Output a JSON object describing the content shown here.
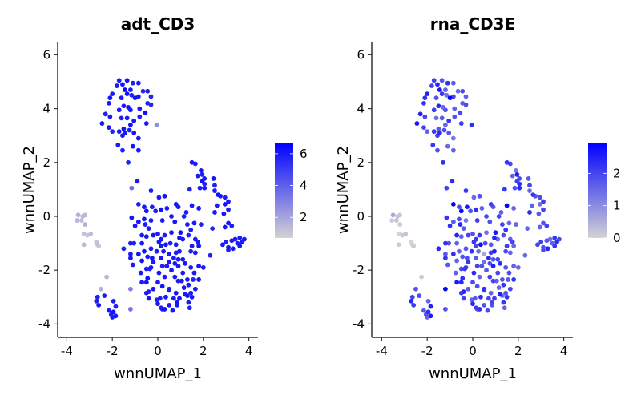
{
  "chart_data": [
    {
      "type": "scatter",
      "title": "adt_CD3",
      "xlabel": "wnnUMAP_1",
      "ylabel": "wnnUMAP_2",
      "xlim": [
        -4.3,
        4.5
      ],
      "ylim": [
        -4.5,
        6.5
      ],
      "xticks": [
        "-4",
        "-2",
        "0",
        "2",
        "4"
      ],
      "yticks": [
        "-4",
        "-2",
        "0",
        "2",
        "4",
        "6"
      ],
      "value_field": "adt",
      "color_range": [
        0.7,
        6.7
      ],
      "color_low": "#d3d3d3",
      "color_high": "#0000ff",
      "legend_ticks": [
        "2",
        "4",
        "6"
      ],
      "legend_position": "right",
      "grid": false
    },
    {
      "type": "scatter",
      "title": "rna_CD3E",
      "xlabel": "wnnUMAP_1",
      "ylabel": "wnnUMAP_2",
      "xlim": [
        -4.3,
        4.5
      ],
      "ylim": [
        -4.5,
        6.5
      ],
      "xticks": [
        "-4",
        "-2",
        "0",
        "2",
        "4"
      ],
      "yticks": [
        "-4",
        "-2",
        "0",
        "2",
        "4",
        "6"
      ],
      "value_field": "rna",
      "color_range": [
        0,
        2.95
      ],
      "color_low": "#d3d3d3",
      "color_high": "#0000ff",
      "legend_ticks": [
        "0",
        "1",
        "2"
      ],
      "legend_position": "right",
      "grid": false
    }
  ],
  "points_fields": [
    "wnnUMAP_1",
    "wnnUMAP_2",
    "adt",
    "rna"
  ],
  "points": [
    [
      -1.7,
      5.05,
      6,
      2.1
    ],
    [
      -1.35,
      5.05,
      6.2,
      1.8
    ],
    [
      -1.1,
      4.95,
      5.8,
      2.3
    ],
    [
      -0.85,
      4.95,
      6,
      1.7
    ],
    [
      -1.8,
      4.85,
      5.9,
      2.0
    ],
    [
      -1.55,
      4.9,
      6.1,
      2.4
    ],
    [
      -1.2,
      4.7,
      6,
      1.6
    ],
    [
      -1.45,
      4.7,
      6.3,
      2.6
    ],
    [
      -0.65,
      4.65,
      5.7,
      1.5
    ],
    [
      -0.45,
      4.65,
      5.9,
      1.9
    ],
    [
      -2.0,
      4.55,
      6,
      2.5
    ],
    [
      -1.35,
      4.55,
      6.2,
      2.2
    ],
    [
      -1.15,
      4.5,
      5.8,
      1.4
    ],
    [
      -0.85,
      4.45,
      6,
      2.0
    ],
    [
      -0.3,
      4.45,
      5.8,
      1.6
    ],
    [
      -2.1,
      4.4,
      6.1,
      2.3
    ],
    [
      -1.6,
      4.4,
      6,
      1.8
    ],
    [
      -1.0,
      4.4,
      6.2,
      2.9
    ],
    [
      -2.15,
      4.2,
      5.9,
      2.2
    ],
    [
      -0.45,
      4.2,
      5.8,
      1.7
    ],
    [
      -0.3,
      4.15,
      5.7,
      1.9
    ],
    [
      -1.5,
      4.1,
      6,
      2.4
    ],
    [
      -1.3,
      4.05,
      6.1,
      1.5
    ],
    [
      -1.7,
      3.95,
      6,
      2.1
    ],
    [
      -1.2,
      3.95,
      5.9,
      1.8
    ],
    [
      -0.8,
      4.0,
      6,
      1.6
    ],
    [
      -2.3,
      3.8,
      5.8,
      2.5
    ],
    [
      -2.1,
      3.7,
      6,
      2.0
    ],
    [
      -0.55,
      3.85,
      6.2,
      1.9
    ],
    [
      -1.6,
      3.65,
      5.9,
      1.4
    ],
    [
      -1.35,
      3.65,
      6,
      1.7
    ],
    [
      -1.05,
      3.55,
      6.1,
      2.2
    ],
    [
      -0.8,
      3.7,
      5.8,
      1.8
    ],
    [
      -2.45,
      3.45,
      6,
      2.6
    ],
    [
      -1.2,
      3.4,
      6.2,
      1.5
    ],
    [
      -0.5,
      3.45,
      5.9,
      2.1
    ],
    [
      -0.05,
      3.4,
      2.6,
      2.3
    ],
    [
      -2.15,
      3.3,
      6,
      2.0
    ],
    [
      -1.5,
      3.25,
      6.1,
      1.7
    ],
    [
      -1.25,
      3.2,
      5.9,
      1.9
    ],
    [
      -1.7,
      3.15,
      6,
      2.2
    ],
    [
      -2.0,
      3.15,
      5.8,
      1.6
    ],
    [
      -1.45,
      3.1,
      6,
      2.4
    ],
    [
      -1.05,
      3.1,
      6.1,
      1.8
    ],
    [
      -1.55,
      3.0,
      6,
      2.0
    ],
    [
      -0.85,
      2.9,
      5.9,
      1.3
    ],
    [
      -1.75,
      2.65,
      6,
      2.2
    ],
    [
      -1.1,
      2.6,
      6.1,
      1.5
    ],
    [
      -1.55,
      2.45,
      5.8,
      1.8
    ],
    [
      -0.85,
      2.45,
      6,
      1.6
    ],
    [
      -1.3,
      2.0,
      5.7,
      2.3
    ],
    [
      -3.5,
      0.05,
      1.6,
      0.6
    ],
    [
      -3.3,
      0.0,
      1.4,
      0.2
    ],
    [
      -3.2,
      0.05,
      1.5,
      0.1
    ],
    [
      -3.55,
      -0.15,
      1.5,
      0.1
    ],
    [
      -3.35,
      -0.15,
      1.3,
      0.2
    ],
    [
      -3.2,
      -0.3,
      1.6,
      0.1
    ],
    [
      -3.25,
      -0.65,
      1.2,
      0
    ],
    [
      -3.1,
      -0.7,
      1.1,
      0.1
    ],
    [
      -2.95,
      -0.65,
      1.3,
      0.2
    ],
    [
      -2.7,
      -0.95,
      1.1,
      0
    ],
    [
      -2.6,
      -1.1,
      1.0,
      0.1
    ],
    [
      -2.65,
      -1.05,
      1.2,
      0
    ],
    [
      -3.25,
      -1.05,
      1.4,
      0.1
    ],
    [
      -2.25,
      -2.25,
      1.5,
      0.1
    ],
    [
      -2.5,
      -2.7,
      1.6,
      1.8
    ],
    [
      -2.65,
      -3.0,
      5.8,
      2.0
    ],
    [
      -2.35,
      -2.95,
      6,
      1.9
    ],
    [
      -2.7,
      -3.15,
      5.9,
      2.4
    ],
    [
      -1.95,
      -3.15,
      6,
      1.6
    ],
    [
      -2.6,
      -3.3,
      6.1,
      2.1
    ],
    [
      -1.85,
      -3.35,
      5.8,
      2.5
    ],
    [
      -2.15,
      -3.5,
      6,
      1.7
    ],
    [
      -1.95,
      -3.55,
      6.2,
      2.3
    ],
    [
      -2.05,
      -3.65,
      5.9,
      1.8
    ],
    [
      -1.85,
      -3.7,
      6,
      2.6
    ],
    [
      -2.0,
      -3.75,
      6,
      1.5
    ],
    [
      -1.2,
      -2.7,
      3.0,
      2.9
    ],
    [
      -1.2,
      -3.45,
      3.4,
      1.8
    ],
    [
      1.5,
      2.0,
      5.9,
      2.2
    ],
    [
      1.65,
      1.95,
      6,
      2.0
    ],
    [
      1.9,
      1.7,
      6.1,
      1.3
    ],
    [
      1.95,
      1.55,
      5.8,
      2.5
    ],
    [
      1.75,
      1.5,
      6,
      1.6
    ],
    [
      2.05,
      1.4,
      6,
      1.9
    ],
    [
      1.95,
      1.3,
      6.2,
      2.1
    ],
    [
      2.05,
      1.2,
      5.8,
      2.3
    ],
    [
      1.85,
      1.05,
      6,
      1.8
    ],
    [
      2.05,
      1.05,
      6,
      2.4
    ],
    [
      2.45,
      1.4,
      6.1,
      1.7
    ],
    [
      2.5,
      1.15,
      5.9,
      2.0
    ],
    [
      2.5,
      0.95,
      6,
      1.5
    ],
    [
      2.65,
      0.8,
      6.2,
      2.2
    ],
    [
      2.75,
      0.75,
      6,
      1.8
    ],
    [
      2.95,
      0.7,
      5.9,
      1.9
    ],
    [
      3.1,
      0.55,
      6,
      2.1
    ],
    [
      2.6,
      0.4,
      6,
      1.6
    ],
    [
      2.95,
      0.45,
      6.1,
      1.4
    ],
    [
      3.1,
      0.25,
      5.8,
      2.0
    ],
    [
      2.9,
      0.1,
      6,
      1.7
    ],
    [
      2.5,
      0.15,
      5.9,
      2.3
    ],
    [
      1.4,
      1.0,
      5.8,
      2.2
    ],
    [
      3.1,
      -0.25,
      6,
      1.8
    ],
    [
      3.25,
      -0.35,
      5.9,
      2.0
    ],
    [
      2.95,
      -0.4,
      6.1,
      1.6
    ],
    [
      2.4,
      -0.45,
      5.7,
      1.5
    ],
    [
      3.6,
      -0.8,
      6,
      2.2
    ],
    [
      3.8,
      -0.85,
      6.1,
      1.9
    ],
    [
      3.7,
      -0.95,
      5.9,
      2.3
    ],
    [
      3.4,
      -0.85,
      6,
      1.4
    ],
    [
      3.25,
      -0.9,
      6,
      1.7
    ],
    [
      3.0,
      -0.95,
      5.8,
      2.1
    ],
    [
      2.85,
      -1.05,
      6,
      2.0
    ],
    [
      3.1,
      -1.15,
      6.1,
      1.8
    ],
    [
      3.5,
      -1.0,
      5.9,
      1.6
    ],
    [
      3.3,
      -1.2,
      6,
      2.4
    ],
    [
      3.6,
      -1.1,
      6,
      2.2
    ],
    [
      3.1,
      -1.25,
      5.8,
      1.9
    ],
    [
      -0.9,
      1.3,
      6,
      2.3
    ],
    [
      -1.15,
      1.05,
      3.6,
      2.0
    ],
    [
      -0.3,
      0.95,
      6,
      2.2
    ],
    [
      0.05,
      0.7,
      5.9,
      1.5
    ],
    [
      0.3,
      0.75,
      6.1,
      1.8
    ],
    [
      -0.85,
      0.45,
      6,
      2.9
    ],
    [
      -0.6,
      0.35,
      6,
      1.9
    ],
    [
      -0.25,
      0.35,
      5.8,
      2.6
    ],
    [
      0.4,
      0.3,
      6,
      1.6
    ],
    [
      0.8,
      0.45,
      6.1,
      2.1
    ],
    [
      0.9,
      0.35,
      5.9,
      1.7
    ],
    [
      1.5,
      0.4,
      6,
      2.9
    ],
    [
      1.8,
      0.3,
      6,
      1.5
    ],
    [
      0.15,
      0.25,
      6.2,
      2.3
    ],
    [
      -0.1,
      0.2,
      5.9,
      1.8
    ],
    [
      -0.5,
      0.2,
      6,
      2.8
    ],
    [
      0.6,
      0.0,
      6,
      1.9
    ],
    [
      1.15,
      -0.0,
      5.8,
      2.0
    ],
    [
      1.25,
      0.15,
      6,
      1.6
    ],
    [
      -1.15,
      -0.05,
      6.1,
      2.2
    ],
    [
      -0.85,
      -0.2,
      6,
      1.7
    ],
    [
      -0.55,
      -0.3,
      5.9,
      2.4
    ],
    [
      -0.3,
      -0.15,
      6,
      1.3
    ],
    [
      0.2,
      -0.15,
      6,
      2.1
    ],
    [
      0.75,
      -0.2,
      6.1,
      1.8
    ],
    [
      1.3,
      -0.3,
      5.9,
      2.0
    ],
    [
      1.6,
      -0.25,
      6,
      1.6
    ],
    [
      1.9,
      -0.3,
      5.8,
      1.5
    ],
    [
      -1.0,
      -0.35,
      6,
      2.3
    ],
    [
      -0.6,
      -0.1,
      6.1,
      1.9
    ],
    [
      -0.4,
      -0.45,
      6,
      1.7
    ],
    [
      1.45,
      -0.5,
      5.9,
      2.2
    ],
    [
      -0.7,
      -0.7,
      6,
      2.5
    ],
    [
      -0.5,
      -0.75,
      6,
      1.6
    ],
    [
      -0.2,
      -0.7,
      6.1,
      2.0
    ],
    [
      0.0,
      -0.65,
      5.9,
      1.8
    ],
    [
      0.3,
      -0.7,
      6,
      2.2
    ],
    [
      0.6,
      -0.6,
      6,
      1.4
    ],
    [
      1.0,
      -0.6,
      6.2,
      2.6
    ],
    [
      1.35,
      -0.7,
      5.8,
      1.9
    ],
    [
      1.65,
      -0.85,
      6,
      1.7
    ],
    [
      0.15,
      -0.85,
      6,
      2.1
    ],
    [
      0.95,
      -0.8,
      6.1,
      2.4
    ],
    [
      1.1,
      -0.85,
      5.9,
      1.5
    ],
    [
      1.75,
      -0.95,
      6,
      2.0
    ],
    [
      -1.2,
      -1.0,
      6,
      2.3
    ],
    [
      -1.05,
      -1.0,
      5.8,
      1.8
    ],
    [
      -0.7,
      -1.0,
      6,
      1.6
    ],
    [
      0.05,
      -0.95,
      6.1,
      2.2
    ],
    [
      0.35,
      -1.05,
      6,
      2.7
    ],
    [
      0.55,
      -1.0,
      5.9,
      1.9
    ],
    [
      0.8,
      -1.05,
      6,
      1.7
    ],
    [
      1.5,
      -1.1,
      6,
      2.1
    ],
    [
      1.8,
      -1.1,
      6.1,
      1.5
    ],
    [
      -1.5,
      -1.2,
      5.8,
      2.4
    ],
    [
      -0.3,
      -1.2,
      6,
      1.8
    ],
    [
      0.15,
      -1.1,
      6,
      2.0
    ],
    [
      -0.6,
      -1.3,
      6.1,
      1.6
    ],
    [
      -0.05,
      -1.3,
      5.9,
      2.2
    ],
    [
      0.25,
      -1.3,
      6,
      1.4
    ],
    [
      0.95,
      -1.3,
      6,
      2.5
    ],
    [
      1.45,
      -1.3,
      5.8,
      1.9
    ],
    [
      -1.2,
      -1.4,
      6,
      1.7
    ],
    [
      -0.85,
      -1.4,
      6.1,
      2.3
    ],
    [
      -0.45,
      -1.5,
      6,
      1.8
    ],
    [
      0.5,
      -1.4,
      5.9,
      0.6
    ],
    [
      0.8,
      -1.35,
      6,
      2.1
    ],
    [
      1.65,
      -1.35,
      6,
      1.6
    ],
    [
      2.3,
      -1.45,
      5.8,
      1.5
    ],
    [
      -1.2,
      -1.55,
      6,
      2.2
    ],
    [
      -0.25,
      -1.55,
      6.1,
      1.9
    ],
    [
      0.15,
      -1.55,
      6,
      1.7
    ],
    [
      0.7,
      -1.55,
      5.9,
      2.4
    ],
    [
      0.9,
      -1.6,
      6,
      1.8
    ],
    [
      1.1,
      -1.6,
      6,
      2.0
    ],
    [
      -0.7,
      -1.65,
      6.2,
      1.6
    ],
    [
      -0.2,
      -1.7,
      5.9,
      2.2
    ],
    [
      0.5,
      -1.7,
      6,
      1.4
    ],
    [
      0.75,
      -1.75,
      6,
      1.9
    ],
    [
      1.2,
      -1.75,
      6.1,
      2.3
    ],
    [
      -1.1,
      -1.8,
      6,
      1.7
    ],
    [
      0.2,
      -1.85,
      5.8,
      2.0
    ],
    [
      0.4,
      -1.85,
      6,
      1.8
    ],
    [
      0.9,
      -1.85,
      6,
      2.5
    ],
    [
      1.8,
      -1.85,
      6.1,
      1.6
    ],
    [
      2.0,
      -1.9,
      5.9,
      1.5
    ],
    [
      -0.3,
      -1.9,
      6,
      2.1
    ],
    [
      -0.5,
      -1.95,
      6,
      1.9
    ],
    [
      -0.35,
      -1.95,
      5.8,
      2.2
    ],
    [
      0.6,
      -2.0,
      6,
      1.7
    ],
    [
      1.45,
      -1.9,
      6,
      1.8
    ],
    [
      0.05,
      -2.1,
      6.1,
      2.4
    ],
    [
      -0.75,
      -2.1,
      5.9,
      1.6
    ],
    [
      1.1,
      -2.1,
      6,
      2.0
    ],
    [
      1.6,
      -2.1,
      6,
      1.9
    ],
    [
      -0.45,
      -2.3,
      6.2,
      2.3
    ],
    [
      0.3,
      -2.25,
      5.9,
      1.5
    ],
    [
      0.75,
      -2.25,
      6,
      2.1
    ],
    [
      1.3,
      -2.35,
      6,
      1.8
    ],
    [
      1.8,
      -2.35,
      6.1,
      2.2
    ],
    [
      1.55,
      -2.35,
      5.8,
      1.7
    ],
    [
      -0.7,
      -2.45,
      6,
      2.6
    ],
    [
      -0.5,
      -2.45,
      6.2,
      2.4
    ],
    [
      0.0,
      -2.45,
      6,
      1.9
    ],
    [
      0.9,
      -2.4,
      5.9,
      2.0
    ],
    [
      1.05,
      -2.4,
      6,
      1.6
    ],
    [
      1.35,
      -2.55,
      6,
      2.2
    ],
    [
      0.2,
      -2.6,
      6.1,
      1.8
    ],
    [
      0.5,
      -2.7,
      5.9,
      2.3
    ],
    [
      1.15,
      -2.65,
      6,
      1.5
    ],
    [
      1.65,
      -2.7,
      6,
      2.0
    ],
    [
      -0.2,
      -2.7,
      6.1,
      1.7
    ],
    [
      -0.4,
      -2.8,
      5.8,
      2.4
    ],
    [
      0.5,
      -2.75,
      6,
      1.9
    ],
    [
      -0.5,
      -2.85,
      6,
      2.1
    ],
    [
      0.8,
      -2.85,
      6.1,
      1.6
    ],
    [
      1.2,
      -2.9,
      5.9,
      2.5
    ],
    [
      1.45,
      -2.85,
      6,
      1.8
    ],
    [
      1.5,
      -3.0,
      6,
      2.2
    ],
    [
      1.3,
      -2.95,
      6.2,
      1.4
    ],
    [
      -0.4,
      -3.05,
      6,
      2.0
    ],
    [
      0.1,
      -3.05,
      5.9,
      1.7
    ],
    [
      0.35,
      -3.0,
      6,
      2.3
    ],
    [
      0.7,
      -3.05,
      6,
      1.9
    ],
    [
      0.95,
      -3.05,
      6.1,
      2.1
    ],
    [
      -0.05,
      -3.1,
      5.8,
      1.6
    ],
    [
      0.0,
      -3.25,
      6,
      2.4
    ],
    [
      0.5,
      -3.3,
      6,
      1.8
    ],
    [
      0.85,
      -3.2,
      6.1,
      2.0
    ],
    [
      1.35,
      -3.2,
      5.9,
      2.2
    ],
    [
      0.2,
      -3.45,
      6,
      1.7
    ],
    [
      0.3,
      -3.45,
      6.2,
      2.3
    ],
    [
      0.65,
      -3.5,
      6,
      1.9
    ],
    [
      1.4,
      -3.4,
      5.8,
      1.6
    ],
    [
      0.15,
      -3.4,
      6,
      2.1
    ],
    [
      0.85,
      -3.3,
      6,
      1.8
    ]
  ]
}
